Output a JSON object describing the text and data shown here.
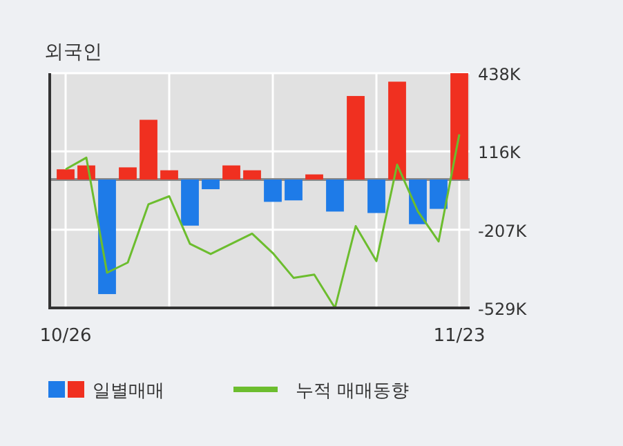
{
  "chart_data": {
    "type": "bar",
    "title": "외국인",
    "categories": [
      "10/26",
      null,
      null,
      null,
      null,
      null,
      null,
      null,
      null,
      null,
      null,
      null,
      null,
      null,
      null,
      null,
      null,
      null,
      null,
      "11/23"
    ],
    "series": [
      {
        "name": "일별매매",
        "colors": [
          "#f03020",
          "#f03020",
          "#1e7be8",
          "#f03020",
          "#f03020",
          "#f03020",
          "#1e7be8",
          "#1e7be8",
          "#f03020",
          "#f03020",
          "#1e7be8",
          "#1e7be8",
          "#f03020",
          "#1e7be8",
          "#f03020",
          "#1e7be8",
          "#f03020",
          "#1e7be8",
          "#1e7be8",
          "#f03020"
        ],
        "values": [
          42,
          58,
          -472,
          50,
          246,
          38,
          -190,
          -40,
          58,
          38,
          -92,
          -86,
          21,
          -132,
          344,
          -138,
          403,
          -184,
          -121,
          438
        ]
      },
      {
        "name": "누적 매매동향",
        "type": "line",
        "color": "#6cbd2e",
        "values": [
          42,
          90,
          -384,
          -342,
          -102,
          -69,
          -265,
          -307,
          -265,
          -223,
          -303,
          -405,
          -392,
          -529,
          -192,
          -336,
          61,
          -131,
          -255,
          186
        ]
      }
    ],
    "ylim": [
      -529,
      438
    ],
    "yticks": [
      {
        "value": 438,
        "label": "438K"
      },
      {
        "value": 116,
        "label": "116K"
      },
      {
        "value": -207,
        "label": "-207K"
      },
      {
        "value": -529,
        "label": "-529K"
      }
    ],
    "grid": true,
    "legend": "bottom"
  }
}
